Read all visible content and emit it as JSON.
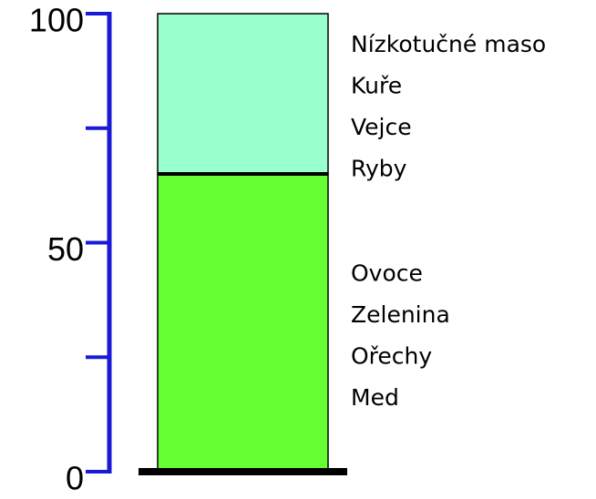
{
  "chart_data": {
    "type": "stacked_bar",
    "ylim": [
      0,
      100
    ],
    "yticks": [
      0,
      50,
      100
    ],
    "minor_yticks": [
      25,
      75
    ],
    "axis_color": "#1a1ad6",
    "series": [
      {
        "color": "#66ff33",
        "values": [
          65
        ],
        "labels": [
          "Ovoce",
          "Zelenina",
          "Ořechy",
          "Med"
        ]
      },
      {
        "color": "#99ffcc",
        "values": [
          35
        ],
        "labels": [
          "Nízkotučné maso",
          "Kuře",
          "Vejce",
          "Ryby"
        ]
      }
    ]
  }
}
